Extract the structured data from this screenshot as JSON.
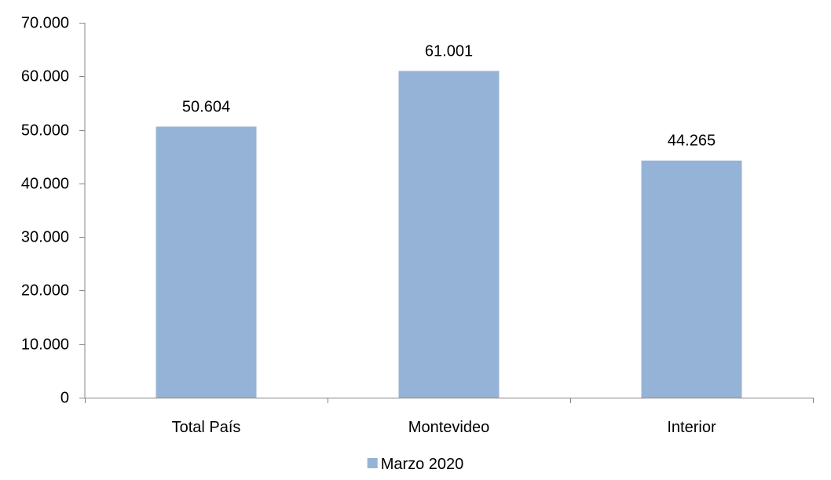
{
  "chart_data": {
    "type": "bar",
    "categories": [
      "Total País",
      "Montevideo",
      "Interior"
    ],
    "series": [
      {
        "name": "Marzo 2020",
        "values": [
          50604,
          61001,
          44265
        ],
        "value_labels": [
          "50.604",
          "61.001",
          "44.265"
        ],
        "color": "#95b3d7"
      }
    ],
    "ylim": [
      0,
      70000
    ],
    "y_ticks": [
      0,
      10000,
      20000,
      30000,
      40000,
      50000,
      60000,
      70000
    ],
    "y_tick_labels": [
      "0",
      "10.000",
      "20.000",
      "30.000",
      "40.000",
      "50.000",
      "60.000",
      "70.000"
    ],
    "grid": false,
    "legend_position": "bottom",
    "axis_color": "#868686"
  }
}
